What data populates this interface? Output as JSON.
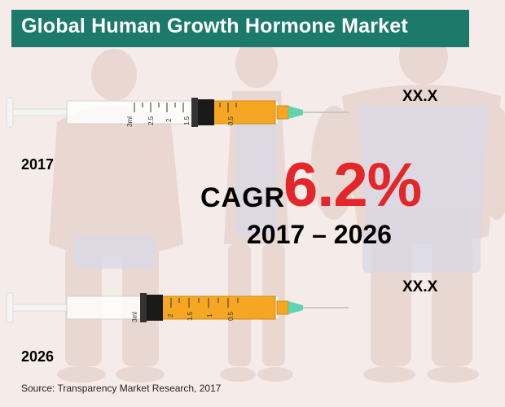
{
  "title": "Global Human Growth Hormone Market",
  "years": {
    "start": "2017",
    "end": "2026"
  },
  "values": {
    "start": "XX.X",
    "end": "XX.X"
  },
  "cagr": {
    "label": "CAGR",
    "value": "6.2%",
    "period": "2017 – 2026"
  },
  "source": "Source: Transparency Market Research, 2017",
  "syringe_top": {
    "ticks": [
      "3ml",
      "2.5",
      "2",
      "1.5",
      "0.5"
    ],
    "fill": 0.42
  },
  "syringe_bottom": {
    "ticks": [
      "3ml",
      "2",
      "1.5",
      "1",
      "0.5"
    ],
    "fill": 0.56
  },
  "colors": {
    "title_bar": "#1b7a6a",
    "cagr_value": "#e3262a",
    "liquid": "#f5a623",
    "needle_cap": "#5fd4b0",
    "background": "#f5ece9"
  },
  "icons": [
    "syringe-icon",
    "syringe-icon",
    "person-silhouette"
  ]
}
